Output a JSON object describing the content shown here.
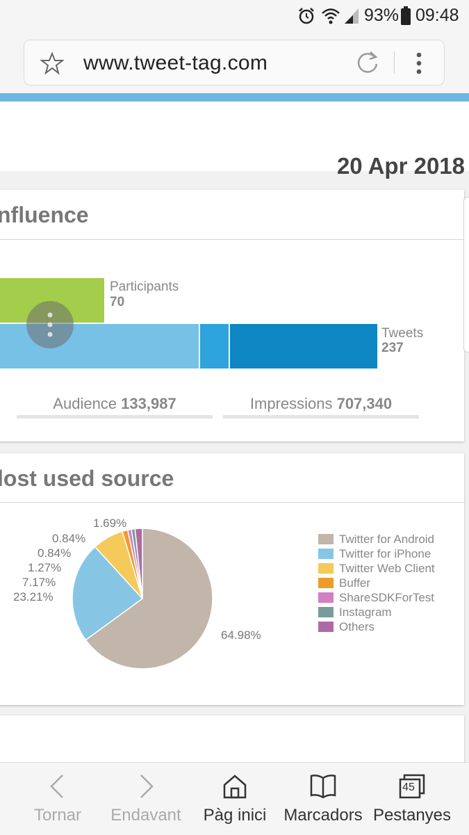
{
  "status_bar": {
    "battery": "93%",
    "time": "09:48"
  },
  "browser": {
    "url": "www.tweet-tag.com"
  },
  "page": {
    "date": "20 Apr 2018"
  },
  "influence": {
    "title": "nfluence",
    "participants_label": "Participants",
    "participants_value": "70",
    "tweets_label": "Tweets",
    "tweets_value": "237",
    "audience_label": "Audience",
    "audience_value": "133,987",
    "impressions_label": "Impressions",
    "impressions_value": "707,340"
  },
  "source": {
    "title": "lost used source",
    "chart_data": {
      "type": "pie",
      "slices": [
        {
          "name": "Twitter for Android",
          "value": 64.98,
          "label": "64.98%",
          "color": "#c2b5a9"
        },
        {
          "name": "Twitter for iPhone",
          "value": 23.21,
          "label": "23.21%",
          "color": "#86c6e4"
        },
        {
          "name": "Twitter Web Client",
          "value": 7.17,
          "label": "7.17%",
          "color": "#f5c95a"
        },
        {
          "name": "Buffer",
          "value": 1.27,
          "label": "1.27%",
          "color": "#ef9b2c"
        },
        {
          "name": "ShareSDKForTest",
          "value": 0.84,
          "label": "0.84%",
          "color": "#d27fc3"
        },
        {
          "name": "Instagram",
          "value": 0.84,
          "label": "0.84%",
          "color": "#7a9b9b"
        },
        {
          "name": "Others",
          "value": 1.69,
          "label": "1.69%",
          "color": "#b06aa3"
        }
      ],
      "legend": [
        "Twitter for Android",
        "Twitter for iPhone",
        "Twitter Web Client",
        "Buffer",
        "ShareSDKForTest",
        "Instagram",
        "Others"
      ],
      "legend_placement": "right"
    }
  },
  "bottom_nav": {
    "back": "Tornar",
    "forward": "Endavant",
    "home": "Pàg inici",
    "bookmarks": "Marcadors",
    "tabs": "Pestanyes",
    "tabs_count": "45"
  },
  "colors": {
    "participants_bar": "#a3cd4a",
    "audience_bar": "#77c0e6",
    "audience_bar_mid": "#2fa3dd",
    "tweets_bar": "#0e86c4"
  }
}
